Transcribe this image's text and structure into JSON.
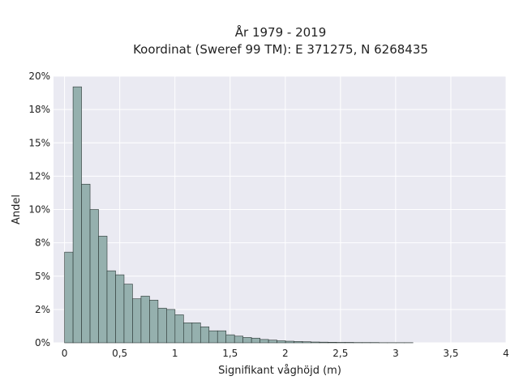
{
  "chart_data": {
    "type": "bar",
    "title": "År 1979 - 2019",
    "subtitle": "Koordinat (Sweref 99 TM): E 371275, N 6268435",
    "xlabel": "Signifikant våghöjd (m)",
    "ylabel": "Andel",
    "xlim": [
      -0.1,
      4.0
    ],
    "ylim": [
      0,
      0.2
    ],
    "x_ticks": [
      0,
      0.5,
      1,
      1.5,
      2,
      2.5,
      3,
      3.5,
      4
    ],
    "x_tick_labels": [
      "0",
      "0,5",
      "1",
      "1,5",
      "2",
      "2,5",
      "3",
      "3,5",
      "4"
    ],
    "y_ticks": [
      0,
      0.025,
      0.05,
      0.075,
      0.1,
      0.125,
      0.15,
      0.175,
      0.2
    ],
    "y_tick_labels": [
      "0%",
      "2%",
      "5%",
      "8%",
      "10%",
      "12%",
      "15%",
      "18%",
      "20%"
    ],
    "grid": true,
    "bin_width": 0.077,
    "bin_start": 0.0,
    "values": [
      0.068,
      0.192,
      0.119,
      0.1,
      0.08,
      0.054,
      0.051,
      0.044,
      0.033,
      0.035,
      0.032,
      0.026,
      0.025,
      0.021,
      0.015,
      0.015,
      0.012,
      0.009,
      0.009,
      0.006,
      0.005,
      0.004,
      0.0035,
      0.0025,
      0.002,
      0.0015,
      0.0012,
      0.001,
      0.0008,
      0.0006,
      0.0005,
      0.0004,
      0.0003,
      0.0003,
      0.0002,
      0.0002,
      0.0002,
      0.0001,
      0.0001,
      0.0001,
      0.0001
    ],
    "colors": {
      "bar_fill": "#95b0ae",
      "bar_stroke": "#2a3533",
      "plot_background": "#eaeaf2",
      "grid": "#ffffff"
    }
  }
}
